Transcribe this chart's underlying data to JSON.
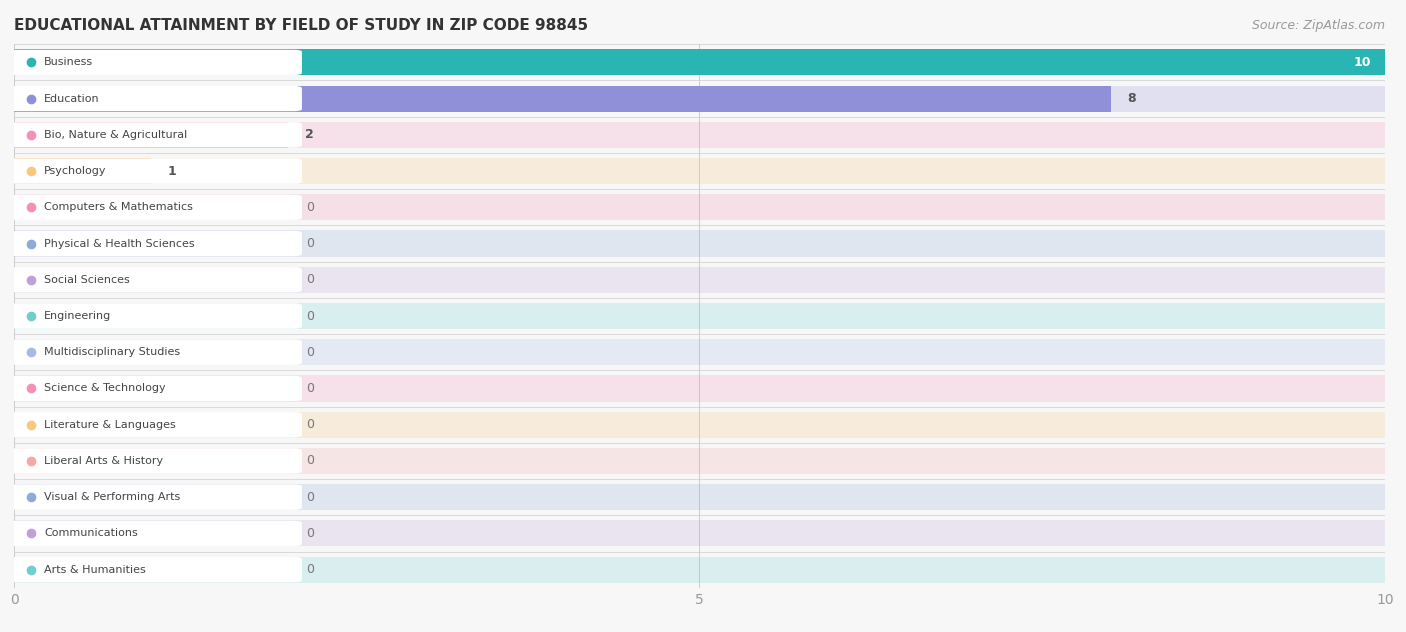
{
  "title": "EDUCATIONAL ATTAINMENT BY FIELD OF STUDY IN ZIP CODE 98845",
  "source": "Source: ZipAtlas.com",
  "categories": [
    "Business",
    "Education",
    "Bio, Nature & Agricultural",
    "Psychology",
    "Computers & Mathematics",
    "Physical & Health Sciences",
    "Social Sciences",
    "Engineering",
    "Multidisciplinary Studies",
    "Science & Technology",
    "Literature & Languages",
    "Liberal Arts & History",
    "Visual & Performing Arts",
    "Communications",
    "Arts & Humanities"
  ],
  "values": [
    10,
    8,
    2,
    1,
    0,
    0,
    0,
    0,
    0,
    0,
    0,
    0,
    0,
    0,
    0
  ],
  "bar_colors": [
    "#2ab5b5",
    "#9090d8",
    "#f590b8",
    "#f9c880",
    "#f590b0",
    "#90aad8",
    "#c0a0d8",
    "#70cece",
    "#a8b8e8",
    "#f590b8",
    "#f9c880",
    "#f4a8a8",
    "#90aad8",
    "#c0a0d8",
    "#70cece"
  ],
  "xlim": [
    0,
    10
  ],
  "background_color": "#f7f7f7",
  "title_fontsize": 11,
  "source_fontsize": 9,
  "tick_fontsize": 10,
  "label_fontsize": 8,
  "value_fontsize": 9
}
